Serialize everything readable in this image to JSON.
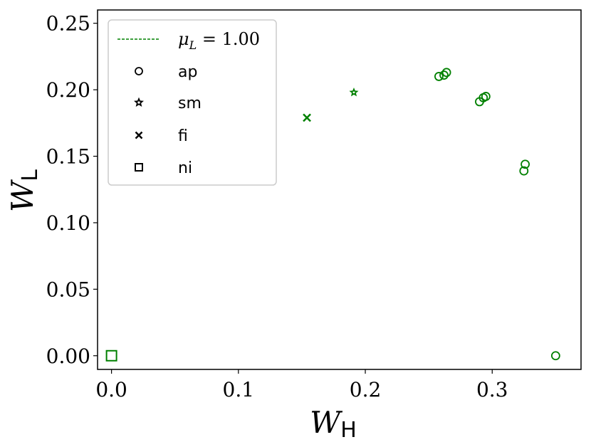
{
  "chart_data": {
    "type": "scatter",
    "x_axis": {
      "symbol": "W",
      "subscript": "H",
      "range": [
        -0.011,
        0.37
      ],
      "ticks": [
        0.0,
        0.1,
        0.2,
        0.3
      ],
      "tick_labels": [
        "0.0",
        "0.1",
        "0.2",
        "0.3"
      ]
    },
    "y_axis": {
      "symbol": "W",
      "subscript": "L",
      "range": [
        -0.0103,
        0.26
      ],
      "ticks": [
        0.0,
        0.05,
        0.1,
        0.15,
        0.2,
        0.25
      ],
      "tick_labels": [
        "0.00",
        "0.05",
        "0.10",
        "0.15",
        "0.20",
        "0.25"
      ]
    },
    "grid": false,
    "legend_position": "top-left",
    "color": "#008000",
    "legend": {
      "line_entry": {
        "symbol": "μ",
        "subscript": "L",
        "value_text": " = 1.00"
      },
      "marker_entries": [
        {
          "marker": "circle",
          "label": "ap"
        },
        {
          "marker": "star",
          "label": "sm"
        },
        {
          "marker": "x",
          "label": "fi"
        },
        {
          "marker": "square",
          "label": "ni"
        }
      ]
    },
    "series": [
      {
        "marker": "circle",
        "points": [
          {
            "x": 0.258,
            "y": 0.21
          },
          {
            "x": 0.262,
            "y": 0.211
          },
          {
            "x": 0.264,
            "y": 0.213
          },
          {
            "x": 0.29,
            "y": 0.191
          },
          {
            "x": 0.293,
            "y": 0.194
          },
          {
            "x": 0.295,
            "y": 0.195
          },
          {
            "x": 0.325,
            "y": 0.139
          },
          {
            "x": 0.326,
            "y": 0.144
          },
          {
            "x": 0.35,
            "y": 0.0
          }
        ]
      },
      {
        "marker": "star",
        "points": [
          {
            "x": 0.191,
            "y": 0.198
          }
        ]
      },
      {
        "marker": "x",
        "points": [
          {
            "x": 0.154,
            "y": 0.179
          }
        ]
      },
      {
        "marker": "square",
        "points": [
          {
            "x": 0.0,
            "y": 0.0
          }
        ]
      }
    ]
  }
}
